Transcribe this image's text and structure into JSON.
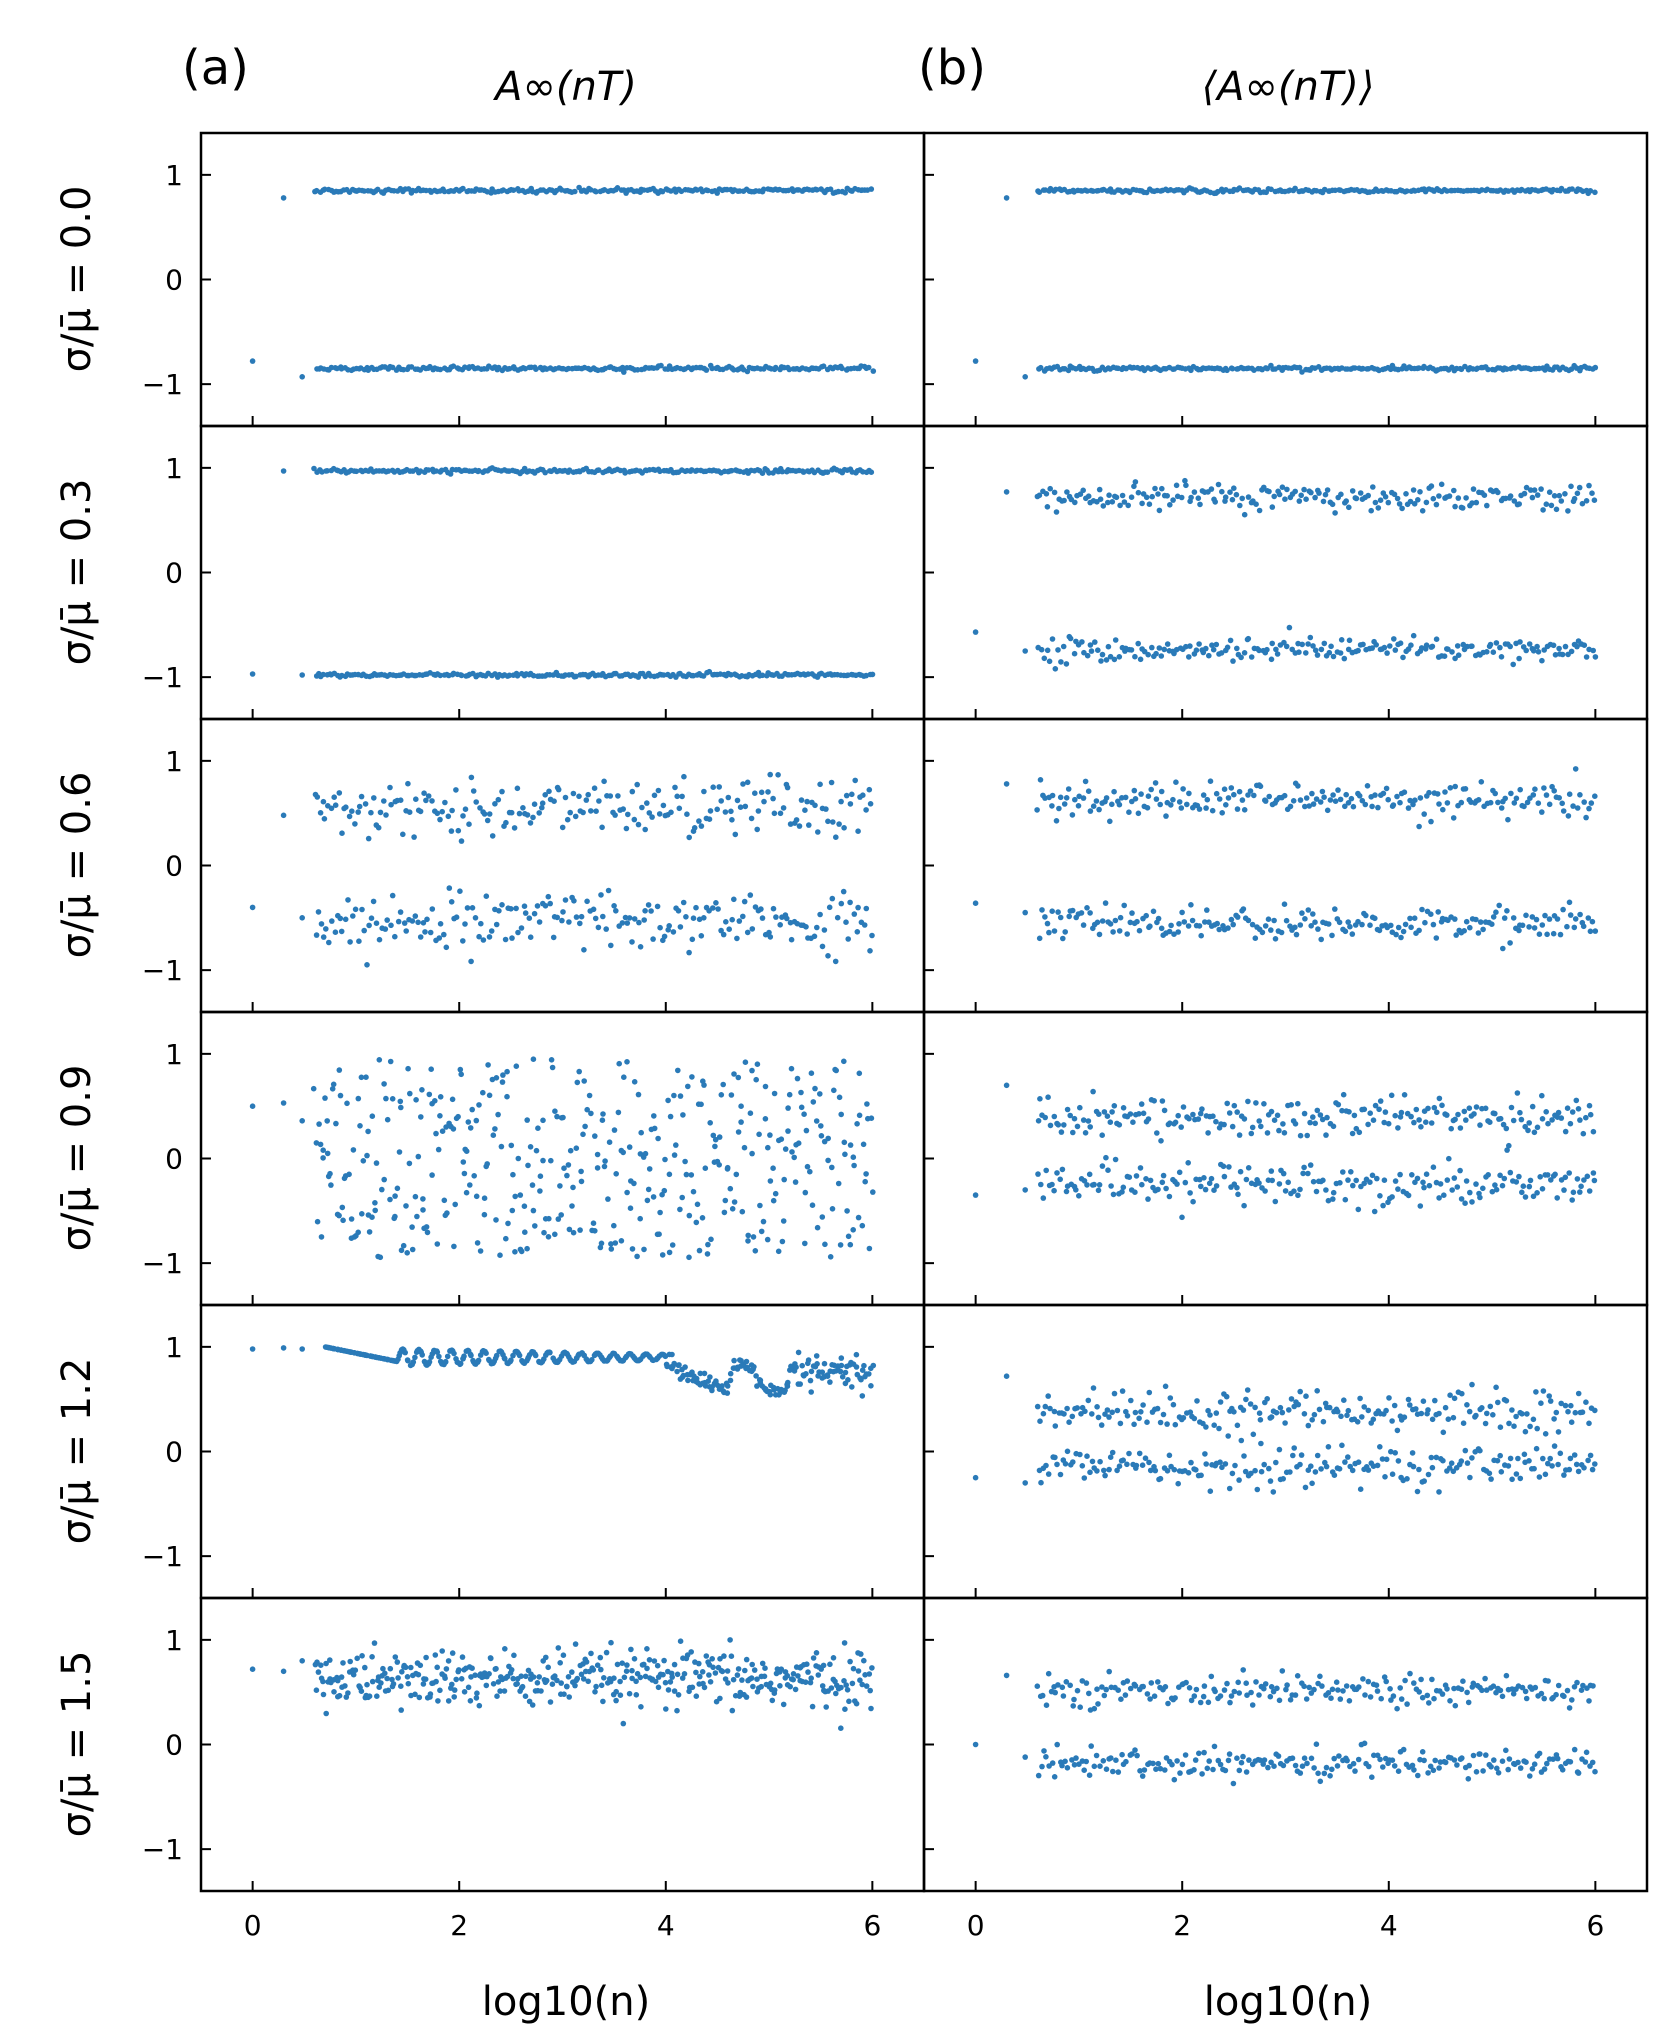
{
  "chart_data": {
    "type": "scatter",
    "color": "#2a7ab8",
    "columns": [
      {
        "panel_label": "(a)",
        "title": "A∞(nT)"
      },
      {
        "panel_label": "(b)",
        "title": "⟨A∞(nT)⟩"
      }
    ],
    "rows": [
      {
        "label": "σ/μ̄ = 0.0",
        "sigma_ratio": 0.0
      },
      {
        "label": "σ/μ̄ = 0.3",
        "sigma_ratio": 0.3
      },
      {
        "label": "σ/μ̄ = 0.6",
        "sigma_ratio": 0.6
      },
      {
        "label": "σ/μ̄ = 0.9",
        "sigma_ratio": 0.9
      },
      {
        "label": "σ/μ̄ = 1.2",
        "sigma_ratio": 1.2
      },
      {
        "label": "σ/μ̄ = 1.5",
        "sigma_ratio": 1.5
      }
    ],
    "xlabel": "log10(n)",
    "xlim": [
      -0.5,
      6.5
    ],
    "ylim": [
      -1.4,
      1.4
    ],
    "xticks": [
      0,
      2,
      4,
      6
    ],
    "xtick_labels": [
      "0",
      "2",
      "4",
      "6"
    ],
    "yticks": [
      -1,
      0,
      1
    ],
    "ytick_labels": [
      "−1",
      "0",
      "1"
    ],
    "n_points_per_panel": 420,
    "panels": [
      {
        "col": 0,
        "row": 0,
        "kind": "bands",
        "upper_center": 0.85,
        "lower_center": -0.85,
        "spread": 0.01,
        "first_points": [
          [
            0,
            -0.78
          ],
          [
            0.3,
            0.78
          ],
          [
            0.48,
            -0.93
          ]
        ]
      },
      {
        "col": 0,
        "row": 1,
        "kind": "bands",
        "upper_center": 0.97,
        "lower_center": -0.98,
        "spread": 0.01,
        "first_points": [
          [
            0,
            -0.97
          ],
          [
            0.3,
            0.97
          ],
          [
            0.48,
            -0.98
          ]
        ]
      },
      {
        "col": 0,
        "row": 2,
        "kind": "bands",
        "upper_center": 0.55,
        "lower_center": -0.55,
        "spread": 0.14,
        "first_points": [
          [
            0,
            -0.4
          ],
          [
            0.3,
            0.48
          ],
          [
            0.48,
            -0.5
          ]
        ]
      },
      {
        "col": 0,
        "row": 3,
        "kind": "uniform",
        "range": [
          -0.95,
          0.95
        ],
        "first_points": [
          [
            0,
            0.5
          ],
          [
            0.3,
            0.53
          ],
          [
            0.48,
            0.36
          ]
        ]
      },
      {
        "col": 0,
        "row": 4,
        "kind": "curve",
        "first_points": [
          [
            0,
            0.98
          ],
          [
            0.3,
            0.99
          ],
          [
            0.48,
            0.98
          ]
        ]
      },
      {
        "col": 0,
        "row": 5,
        "kind": "band",
        "center": 0.62,
        "spread": 0.14,
        "first_points": [
          [
            0,
            0.72
          ],
          [
            0.3,
            0.7
          ],
          [
            0.48,
            0.8
          ]
        ]
      },
      {
        "col": 1,
        "row": 0,
        "kind": "bands",
        "upper_center": 0.85,
        "lower_center": -0.85,
        "spread": 0.01,
        "first_points": [
          [
            0,
            -0.78
          ],
          [
            0.3,
            0.78
          ],
          [
            0.48,
            -0.93
          ]
        ]
      },
      {
        "col": 1,
        "row": 1,
        "kind": "bands",
        "upper_center": 0.72,
        "lower_center": -0.74,
        "spread": 0.06,
        "first_points": [
          [
            0,
            -0.57
          ],
          [
            0.3,
            0.77
          ],
          [
            0.48,
            -0.75
          ]
        ]
      },
      {
        "col": 1,
        "row": 2,
        "kind": "bands",
        "upper_center": 0.62,
        "lower_center": -0.55,
        "spread": 0.08,
        "first_points": [
          [
            0,
            -0.36
          ],
          [
            0.3,
            0.78
          ],
          [
            0.48,
            -0.45
          ]
        ]
      },
      {
        "col": 1,
        "row": 3,
        "kind": "bands",
        "upper_center": 0.4,
        "lower_center": -0.25,
        "spread": 0.1,
        "first_points": [
          [
            0,
            -0.35
          ],
          [
            0.3,
            0.7
          ],
          [
            0.48,
            -0.3
          ]
        ]
      },
      {
        "col": 1,
        "row": 4,
        "kind": "bands",
        "upper_center": 0.38,
        "lower_center": -0.15,
        "spread": 0.1,
        "first_points": [
          [
            0,
            -0.25
          ],
          [
            0.3,
            0.72
          ],
          [
            0.48,
            -0.3
          ]
        ]
      },
      {
        "col": 1,
        "row": 5,
        "kind": "bands",
        "upper_center": 0.52,
        "lower_center": -0.18,
        "spread": 0.07,
        "first_points": [
          [
            0,
            0.0
          ],
          [
            0.3,
            0.66
          ],
          [
            0.48,
            -0.12
          ]
        ]
      }
    ]
  }
}
